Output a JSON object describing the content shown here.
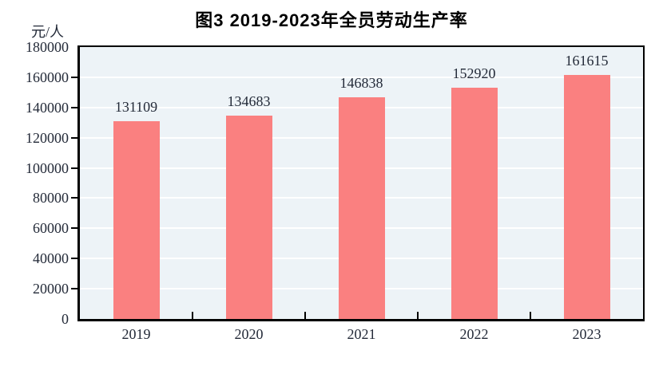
{
  "title": "图3  2019-2023年全员劳动生产率",
  "y_axis_unit": "元/人",
  "chart_data": {
    "type": "bar",
    "title": "图3  2019-2023年全员劳动生产率",
    "categories": [
      "2019",
      "2020",
      "2021",
      "2022",
      "2023"
    ],
    "values": [
      131109,
      134683,
      146838,
      152920,
      161615
    ],
    "data_labels": [
      "131109",
      "134683",
      "146838",
      "152920",
      "161615"
    ],
    "xlabel": "",
    "ylabel": "元/人",
    "ylim": [
      0,
      180000
    ],
    "yticks": [
      0,
      20000,
      40000,
      60000,
      80000,
      100000,
      120000,
      140000,
      160000,
      180000
    ],
    "grid": "horizontal",
    "legend": "none",
    "colors": {
      "bar": "#fa8080",
      "plot_background": "#edf3f7",
      "gridline": "#ffffff",
      "axis": "#000000",
      "text": "#232a38",
      "title_text": "#000000",
      "page_background": "#ffffff"
    }
  }
}
